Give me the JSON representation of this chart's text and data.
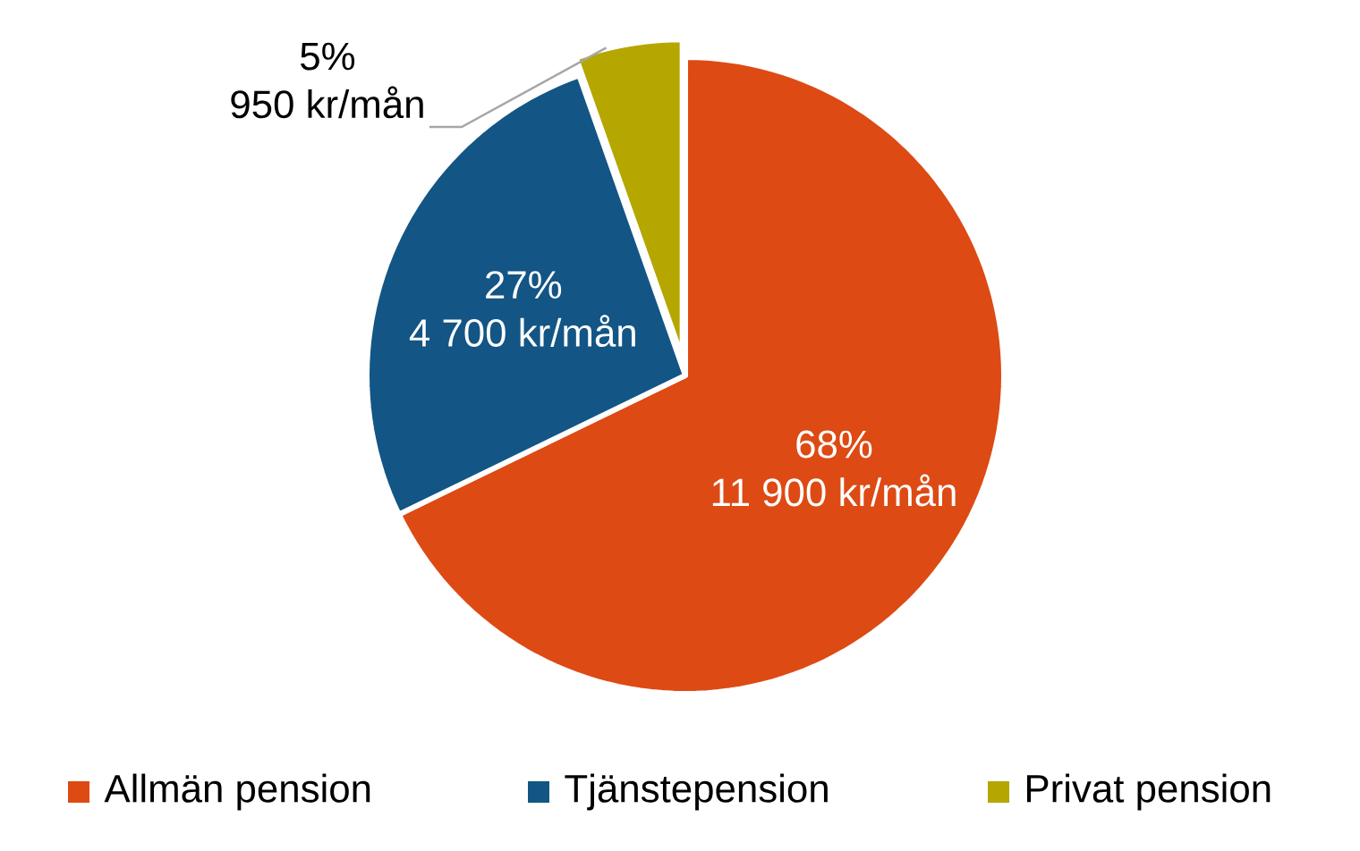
{
  "chart_data": {
    "type": "pie",
    "categories": [
      "Allmän pension",
      "Tjänstepension",
      "Privat pension"
    ],
    "values": [
      11900,
      4700,
      950
    ],
    "colors": [
      "#dd4a14",
      "#135585",
      "#b5a600"
    ],
    "value_labels": [
      "11 900 kr/mån",
      "4 700 kr/mån",
      "950 kr/mån"
    ],
    "annotations": [
      {
        "text": "68%",
        "x": "Allmän pension"
      },
      {
        "text": "27%",
        "x": "Tjänstepension"
      },
      {
        "text": "5%",
        "x": "Privat pension"
      }
    ],
    "legend": "bottom"
  }
}
